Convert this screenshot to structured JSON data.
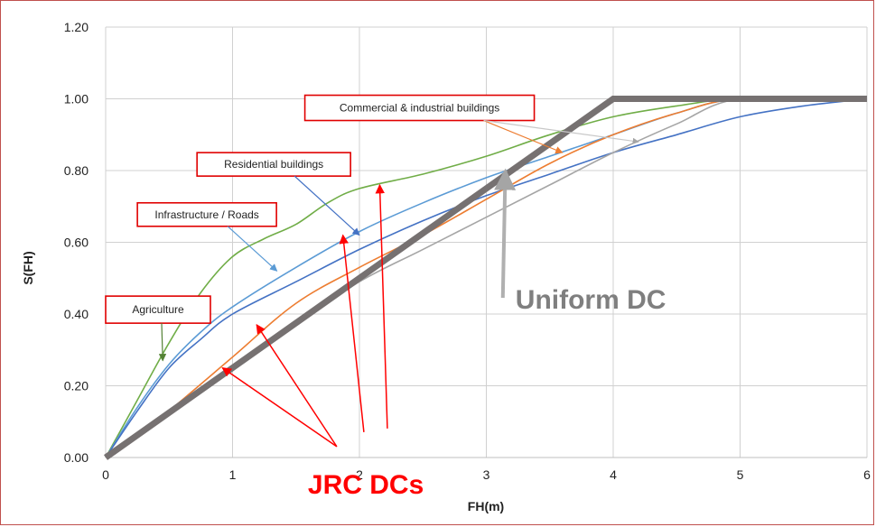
{
  "chart_data": {
    "type": "line",
    "title": "",
    "xlabel": "FH(m)",
    "ylabel": "S(FH)",
    "xlim": [
      0,
      6
    ],
    "ylim": [
      0,
      1.2
    ],
    "x_ticks": [
      "0",
      "1",
      "2",
      "3",
      "4",
      "5",
      "6"
    ],
    "y_ticks": [
      "0.00",
      "0.20",
      "0.40",
      "0.60",
      "0.80",
      "1.00",
      "1.20"
    ],
    "grid": true,
    "colors": {
      "agriculture": "#70ad47",
      "infrastructure": "#5b9bd5",
      "residential": "#4472c4",
      "commercial": "#ed7d31",
      "extra_gray": "#a5a5a5",
      "uniform": "#767171",
      "annotation_red": "#ff0000",
      "uniform_label": "#7f7f7f"
    },
    "series": [
      {
        "key": "agriculture",
        "points": [
          [
            0,
            0
          ],
          [
            0.25,
            0.16
          ],
          [
            0.5,
            0.32
          ],
          [
            0.75,
            0.46
          ],
          [
            1,
            0.56
          ],
          [
            1.25,
            0.61
          ],
          [
            1.5,
            0.65
          ],
          [
            1.75,
            0.71
          ],
          [
            2,
            0.75
          ],
          [
            2.5,
            0.79
          ],
          [
            3,
            0.84
          ],
          [
            3.5,
            0.9
          ],
          [
            4,
            0.95
          ],
          [
            4.5,
            0.98
          ],
          [
            5,
            1.0
          ],
          [
            6,
            1.0
          ]
        ]
      },
      {
        "key": "infrastructure",
        "points": [
          [
            0,
            0
          ],
          [
            0.25,
            0.14
          ],
          [
            0.5,
            0.26
          ],
          [
            0.75,
            0.35
          ],
          [
            1,
            0.42
          ],
          [
            1.5,
            0.53
          ],
          [
            2,
            0.63
          ],
          [
            2.5,
            0.71
          ],
          [
            3,
            0.78
          ],
          [
            3.5,
            0.84
          ],
          [
            4,
            0.9
          ],
          [
            4.5,
            0.96
          ],
          [
            5,
            1.0
          ],
          [
            6,
            1.0
          ]
        ]
      },
      {
        "key": "residential",
        "points": [
          [
            0,
            0
          ],
          [
            0.25,
            0.13
          ],
          [
            0.5,
            0.25
          ],
          [
            0.75,
            0.33
          ],
          [
            1,
            0.4
          ],
          [
            1.5,
            0.49
          ],
          [
            2,
            0.58
          ],
          [
            2.5,
            0.66
          ],
          [
            3,
            0.73
          ],
          [
            3.5,
            0.79
          ],
          [
            4,
            0.85
          ],
          [
            4.5,
            0.9
          ],
          [
            5,
            0.95
          ],
          [
            5.5,
            0.98
          ],
          [
            6,
            1.0
          ]
        ]
      },
      {
        "key": "commercial",
        "points": [
          [
            0,
            0
          ],
          [
            0.25,
            0.06
          ],
          [
            0.5,
            0.13
          ],
          [
            1,
            0.28
          ],
          [
            1.5,
            0.43
          ],
          [
            2,
            0.53
          ],
          [
            2.5,
            0.62
          ],
          [
            3,
            0.72
          ],
          [
            3.5,
            0.82
          ],
          [
            4,
            0.9
          ],
          [
            4.5,
            0.96
          ],
          [
            5,
            1.0
          ],
          [
            6,
            1.0
          ]
        ]
      },
      {
        "key": "extra_gray",
        "points": [
          [
            0,
            0
          ],
          [
            0.5,
            0.12
          ],
          [
            1,
            0.25
          ],
          [
            1.5,
            0.37
          ],
          [
            2,
            0.49
          ],
          [
            2.5,
            0.58
          ],
          [
            3,
            0.67
          ],
          [
            3.5,
            0.76
          ],
          [
            4,
            0.85
          ],
          [
            4.5,
            0.93
          ],
          [
            5,
            1.0
          ],
          [
            6,
            1.0
          ]
        ]
      },
      {
        "key": "uniform",
        "points": [
          [
            0,
            0
          ],
          [
            4,
            1.0
          ],
          [
            6,
            1.0
          ]
        ]
      }
    ],
    "annotations": {
      "agriculture": {
        "text": "Agriculture",
        "box": [
          0.0,
          0.45
        ],
        "target": [
          0.45,
          0.27
        ]
      },
      "infrastructure": {
        "text": "Infrastructure / Roads",
        "box": [
          0.25,
          0.71
        ],
        "target": [
          1.35,
          0.52
        ]
      },
      "residential": {
        "text": "Residential buildings",
        "box": [
          0.72,
          0.85
        ],
        "target": [
          2.0,
          0.62
        ]
      },
      "commercial": {
        "text": "Commercial & industrial buildings",
        "box": [
          1.57,
          1.01
        ],
        "targets": [
          [
            3.6,
            0.85
          ],
          [
            4.2,
            0.88
          ]
        ]
      },
      "jrc": {
        "text": "JRC DCs",
        "anchor": [
          1.85,
          -0.05
        ],
        "targets": [
          [
            0.92,
            0.25
          ],
          [
            1.19,
            0.37
          ],
          [
            1.87,
            0.62
          ],
          [
            2.16,
            0.76
          ]
        ]
      },
      "uniform": {
        "text": "Uniform DC",
        "anchor": [
          3.97,
          0.43
        ],
        "target": [
          3.15,
          0.8
        ]
      }
    }
  }
}
